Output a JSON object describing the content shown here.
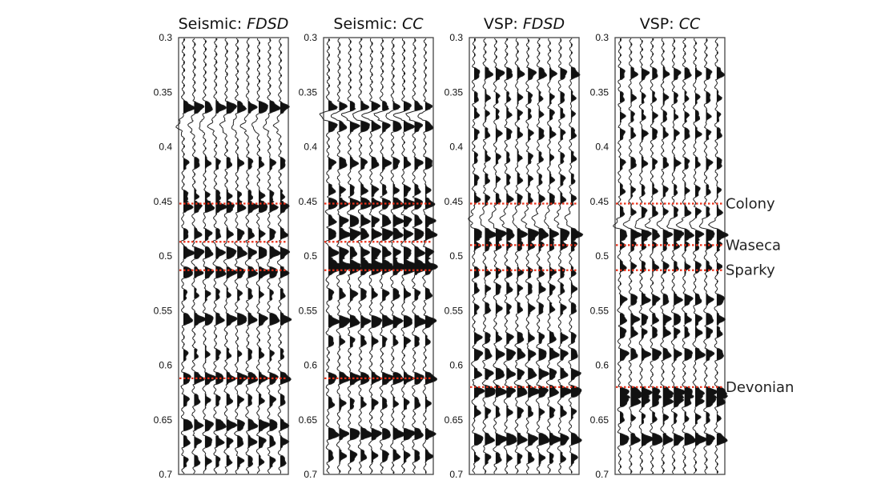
{
  "figure": {
    "panels": [
      {
        "id": "seismic-fdsd",
        "title_main": "Seismic: ",
        "title_method": "FDSD"
      },
      {
        "id": "seismic-cc",
        "title_main": "Seismic: ",
        "title_method": "CC"
      },
      {
        "id": "vsp-fdsd",
        "title_main": "VSP: ",
        "title_method": "FDSD"
      },
      {
        "id": "vsp-cc",
        "title_main": "VSP: ",
        "title_method": "CC"
      }
    ],
    "time_axis": {
      "range": [
        0.3,
        0.7
      ],
      "ticks": [
        "0.3",
        "0.35",
        "0.4",
        "0.45",
        "0.5",
        "0.55",
        "0.6",
        "0.65",
        "0.7"
      ]
    },
    "traces_per_panel": 10,
    "horizons": [
      {
        "name": "Colony",
        "seismic_time": 0.452,
        "vsp_time": 0.452
      },
      {
        "name": "Waseca",
        "seismic_time": 0.487,
        "vsp_time": 0.49
      },
      {
        "name": "Sparky",
        "seismic_time": 0.513,
        "vsp_time": 0.513
      },
      {
        "name": "Devonian",
        "seismic_time": 0.612,
        "vsp_time": 0.62
      }
    ],
    "events": {
      "seismic-fdsd": [
        [
          0.364,
          0.9
        ],
        [
          0.381,
          -0.6
        ],
        [
          0.415,
          0.5
        ],
        [
          0.445,
          0.5
        ],
        [
          0.455,
          0.9
        ],
        [
          0.48,
          0.6
        ],
        [
          0.497,
          0.9
        ],
        [
          0.515,
          0.9
        ],
        [
          0.535,
          0.4
        ],
        [
          0.558,
          0.9
        ],
        [
          0.59,
          0.4
        ],
        [
          0.612,
          0.9
        ],
        [
          0.632,
          0.5
        ],
        [
          0.655,
          0.9
        ],
        [
          0.67,
          0.7
        ],
        [
          0.688,
          0.5
        ]
      ],
      "seismic-cc": [
        [
          0.364,
          0.9
        ],
        [
          0.37,
          -0.7
        ],
        [
          0.381,
          0.9
        ],
        [
          0.415,
          0.7
        ],
        [
          0.44,
          0.6
        ],
        [
          0.452,
          1.0
        ],
        [
          0.468,
          0.9
        ],
        [
          0.48,
          1.0
        ],
        [
          0.497,
          0.9
        ],
        [
          0.507,
          0.8
        ],
        [
          0.512,
          1.0
        ],
        [
          0.535,
          0.6
        ],
        [
          0.56,
          1.0
        ],
        [
          0.578,
          0.5
        ],
        [
          0.612,
          1.0
        ],
        [
          0.635,
          0.5
        ],
        [
          0.663,
          1.0
        ],
        [
          0.683,
          0.6
        ]
      ],
      "vsp-fdsd": [
        [
          0.333,
          0.7
        ],
        [
          0.355,
          0.4
        ],
        [
          0.37,
          0.4
        ],
        [
          0.388,
          0.5
        ],
        [
          0.41,
          0.4
        ],
        [
          0.43,
          0.4
        ],
        [
          0.448,
          0.5
        ],
        [
          0.466,
          -0.5
        ],
        [
          0.48,
          1.0
        ],
        [
          0.49,
          0.6
        ],
        [
          0.515,
          0.5
        ],
        [
          0.53,
          0.5
        ],
        [
          0.548,
          0.5
        ],
        [
          0.575,
          0.6
        ],
        [
          0.59,
          0.8
        ],
        [
          0.608,
          0.8
        ],
        [
          0.624,
          1.0
        ],
        [
          0.643,
          0.5
        ],
        [
          0.668,
          1.0
        ],
        [
          0.685,
          0.5
        ]
      ],
      "vsp-cc": [
        [
          0.333,
          0.6
        ],
        [
          0.355,
          0.4
        ],
        [
          0.372,
          0.4
        ],
        [
          0.388,
          0.5
        ],
        [
          0.415,
          0.5
        ],
        [
          0.44,
          0.4
        ],
        [
          0.46,
          0.5
        ],
        [
          0.472,
          -0.5
        ],
        [
          0.48,
          1.0
        ],
        [
          0.49,
          0.5
        ],
        [
          0.51,
          0.5
        ],
        [
          0.54,
          0.7
        ],
        [
          0.558,
          0.7
        ],
        [
          0.57,
          0.6
        ],
        [
          0.59,
          0.8
        ],
        [
          0.625,
          1.0
        ],
        [
          0.633,
          0.9
        ],
        [
          0.648,
          0.4
        ],
        [
          0.668,
          1.0
        ]
      ]
    }
  }
}
